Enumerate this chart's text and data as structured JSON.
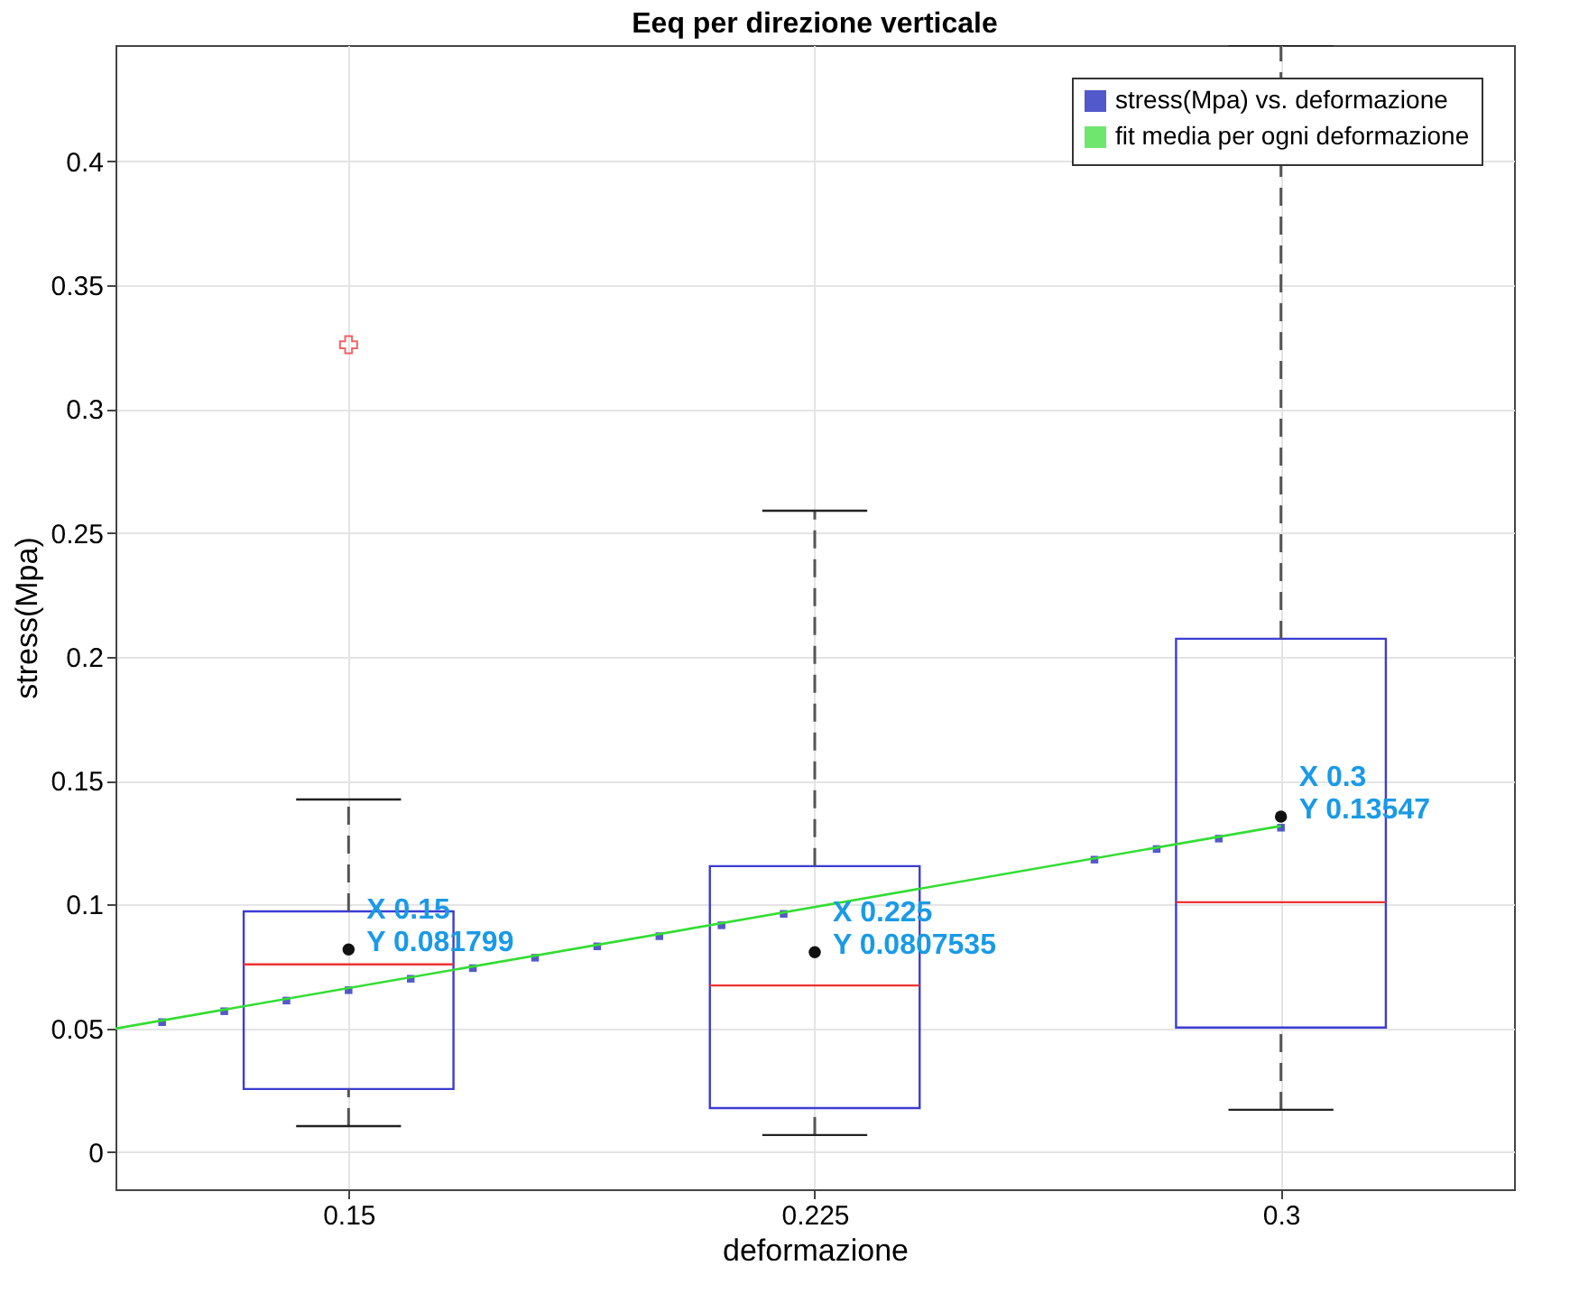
{
  "chart_data": {
    "type": "box",
    "title": "Eeq per direzione verticale",
    "xlabel": "deformazione",
    "ylabel": "stress(Mpa)",
    "x": [
      0.15,
      0.225,
      0.3
    ],
    "boxes": [
      {
        "low": 0.0105,
        "q1": 0.0255,
        "median": 0.0758,
        "q3": 0.0972,
        "high": 0.1424,
        "mean": 0.081799,
        "outliers": [
          0.326
        ]
      },
      {
        "low": 0.0069,
        "q1": 0.0178,
        "median": 0.0673,
        "q3": 0.1155,
        "high": 0.259,
        "mean": 0.0807535
      },
      {
        "low": 0.0171,
        "q1": 0.0503,
        "median": 0.1009,
        "q3": 0.2073,
        "high": 0.447,
        "mean": 0.13547
      }
    ],
    "colors": [
      "#3c3cd2",
      "#3c3cd2",
      "#3c3cd2"
    ],
    "series": [
      {
        "name": "stress(Mpa) vs. deformazione",
        "type": "scatter",
        "marker": "square",
        "color": "#0a14b4",
        "x": [
          0.12,
          0.13,
          0.14,
          0.15,
          0.16,
          0.17,
          0.18,
          0.19,
          0.2,
          0.21,
          0.22,
          0.23,
          0.24,
          0.25,
          0.26,
          0.27,
          0.28,
          0.29,
          0.3
        ],
        "values": [
          0.0525,
          0.0569,
          0.0612,
          0.0654,
          0.07,
          0.0743,
          0.0785,
          0.0831,
          0.0872,
          0.0916,
          0.0962,
          null,
          null,
          null,
          null,
          0.1181,
          0.1224,
          0.1266,
          0.131
        ]
      },
      {
        "name": "fit media per ogni deformazione",
        "type": "line",
        "line_style": "solid",
        "color": "#33dd33",
        "x": [
          0.1125,
          0.3
        ],
        "values": [
          0.0499,
          0.1317
        ]
      }
    ],
    "annotations": [
      "X 0.15\nY 0.081799",
      "X 0.225\nY 0.0807535",
      "X 0.3\nY 0.13547"
    ],
    "xlim": [
      0.1125,
      0.3375
    ],
    "xticks": [
      0.15,
      0.225,
      0.3
    ],
    "ylim": [
      -0.015,
      0.447
    ],
    "yticks": [
      0,
      0.05,
      0.1,
      0.15,
      0.2,
      0.25,
      0.3,
      0.35,
      0.4
    ],
    "grid": true,
    "legend": "top right"
  }
}
